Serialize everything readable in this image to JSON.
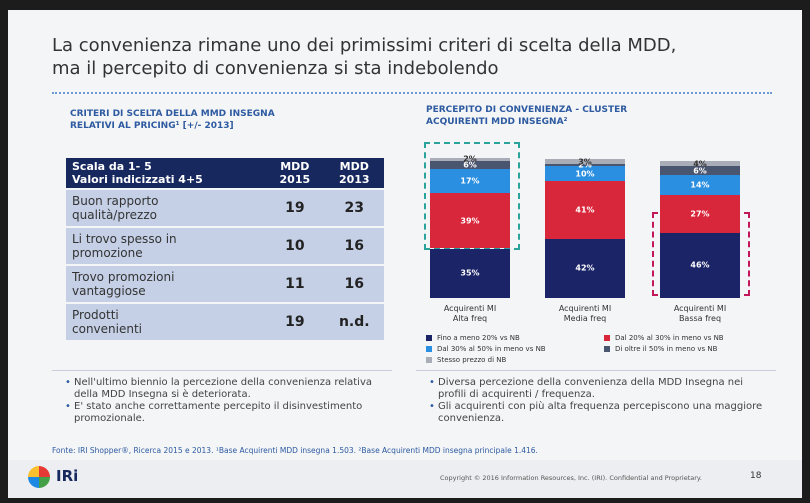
{
  "title": "La convenienza rimane uno dei primissimi criteri di scelta della MDD,\nma il percepito di convenienza si sta indebolendo",
  "left_panel": {
    "title": "CRITERI DI SCELTA DELLA MMD INSEGNA\nRELATIVI AL PRICING¹ [+/- 2013]",
    "table": {
      "header": [
        "Scala da 1- 5\nValori indicizzati 4+5",
        "MDD\n2015",
        "MDD\n2013"
      ],
      "rows": [
        [
          "Buon rapporto\nqualità/prezzo",
          19,
          23
        ],
        [
          "Li trovo spesso in\npromozione",
          10,
          16
        ],
        [
          "Trovo promozioni\nvantaggiose",
          11,
          16
        ],
        [
          "Prodotti\nconvenienti",
          19,
          "n.d."
        ]
      ]
    }
  },
  "chart_data": {
    "type": "stacked_bar",
    "title": "PERCEPITO DI CONVENIENZA - CLUSTER\nACQUIRENTI MDD INSEGNA²",
    "categories": [
      "Acquirenti MI\nAlta freq",
      "Acquirenti MI\nMedia freq",
      "Acquirenti MI\nBassa freq"
    ],
    "series": [
      {
        "name": "Fino a meno 20% vs NB",
        "color": "#1b2466",
        "values": [
          35,
          42,
          46
        ],
        "value_labels": [
          "35%",
          "42%",
          "46%"
        ]
      },
      {
        "name": "Dal 20% al 30% in meno vs NB",
        "color": "#d8263a",
        "values": [
          39,
          41,
          27
        ],
        "value_labels": [
          "39%",
          "41%",
          "27%"
        ]
      },
      {
        "name": "Dal 30% al 50% in meno vs NB",
        "color": "#2a8fe0",
        "values": [
          17,
          10,
          14
        ],
        "value_labels": [
          "17%",
          "10%",
          "14%"
        ]
      },
      {
        "name": "Di oltre il 50% in meno vs NB",
        "color": "#4a5570",
        "values": [
          6,
          2,
          6
        ],
        "value_labels": [
          "6%",
          "2%",
          "6%"
        ]
      },
      {
        "name": "Stesso prezzo di NB",
        "color": "#a9adb8",
        "values": [
          2,
          3,
          4
        ],
        "value_labels": [
          "2%",
          "3%",
          "4%"
        ]
      }
    ]
  },
  "bullets_left": [
    "Nell'ultimo biennio la percezione della convenienza relativa della MDD Insegna si è deteriorata.",
    "E' stato anche correttamente percepito il disinvestimento promozionale."
  ],
  "bullets_right": [
    "Diversa percezione della convenienza della MDD Insegna nei profili di acquirenti / frequenza.",
    "Gli acquirenti con più alta frequenza percepiscono una maggiore convenienza."
  ],
  "footer": {
    "source": "Fonte: IRI Shopper®, Ricerca 2015 e 2013. ¹Base Acquirenti MDD insegna 1.503. ²Base Acquirenti MDD insegna principale 1.416.",
    "logo": "IRi",
    "copyright": "Copyright © 2016 Information Resources, Inc. (IRI). Confidential and Proprietary.",
    "page": "18"
  }
}
